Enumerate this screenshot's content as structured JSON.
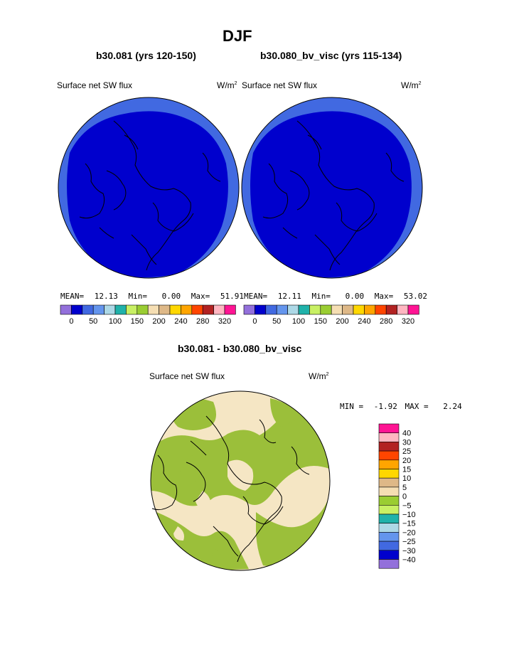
{
  "title": "DJF",
  "panel_left": {
    "case": "b30.081 (yrs 120-150)",
    "field": "Surface net SW flux",
    "units": "W/m",
    "units_exp": "2",
    "stats": {
      "mean_label": "MEAN=",
      "mean": "12.13",
      "min_label": "Min=",
      "min": "0.00",
      "max_label": "Max=",
      "max": "51.91"
    }
  },
  "panel_right": {
    "case": "b30.080_bv_visc (yrs 115-134)",
    "field": "Surface net SW flux",
    "units": "W/m",
    "units_exp": "2",
    "stats": {
      "mean_label": "MEAN=",
      "mean": "12.11",
      "min_label": "Min=",
      "min": "0.00",
      "max_label": "Max=",
      "max": "53.02"
    }
  },
  "colorbar_top": {
    "colors": [
      "#9370db",
      "#0000cd",
      "#4169e1",
      "#6495ed",
      "#add8e6",
      "#20b2aa",
      "#c8f064",
      "#9acd32",
      "#f5deb3",
      "#deb887",
      "#ffd700",
      "#ffa500",
      "#ff4500",
      "#b22222",
      "#ffb6c1",
      "#ff1493"
    ],
    "labels": [
      "0",
      "50",
      "100",
      "150",
      "200",
      "240",
      "280",
      "320"
    ]
  },
  "diff_panel": {
    "title": "b30.081 - b30.080_bv_visc",
    "field": "Surface net SW flux",
    "units": "W/m",
    "units_exp": "2",
    "min_label": "MIN =",
    "min": "-1.92",
    "max_label": "MAX =",
    "max": "2.24"
  },
  "colorbar_diff": {
    "colors": [
      "#ff1493",
      "#ffb6c1",
      "#b22222",
      "#ff4500",
      "#ffa500",
      "#ffd700",
      "#deb887",
      "#f5deb3",
      "#9acd32",
      "#c8f064",
      "#20b2aa",
      "#add8e6",
      "#6495ed",
      "#4169e1",
      "#0000cd",
      "#9370db"
    ],
    "labels": [
      "40",
      "30",
      "25",
      "20",
      "15",
      "10",
      "5",
      "0",
      "−5",
      "−10",
      "−15",
      "−20",
      "−25",
      "−30",
      "−40"
    ]
  },
  "map_colors": {
    "ocean_outer": "#4169e1",
    "interior": "#0000cd",
    "diff_background": "#f5e6c4",
    "diff_negative": "#9bbf3a"
  }
}
